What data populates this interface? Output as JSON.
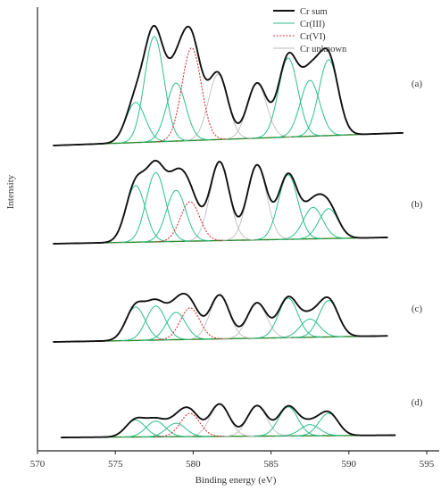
{
  "chart_data": {
    "type": "line",
    "title": "",
    "xlabel": "Binding energy (eV)",
    "ylabel": "Intensity",
    "xlim": [
      570,
      595
    ],
    "x_ticks": [
      "570",
      "575",
      "580",
      "585",
      "590",
      "595"
    ],
    "grid": false,
    "legend_position": "top-right",
    "legend": [
      {
        "name": "Cr sum",
        "color": "#111111",
        "style": "solid"
      },
      {
        "name": "Cr(III)",
        "color": "#2dbf8a",
        "style": "solid"
      },
      {
        "name": "Cr(VI)",
        "color": "#d6333a",
        "style": "dotted"
      },
      {
        "name": "Cr unknown",
        "color": "#bbbbbb",
        "style": "solid"
      }
    ],
    "colors": {
      "sum": "#111111",
      "cr3": "#2dbf8a",
      "cr6": "#d6333a",
      "unknown": "#bdbdbd",
      "background": "#2e8b2e"
    },
    "panels": [
      {
        "label": "(a)",
        "x_range": [
          571.0,
          593.5
        ],
        "baseline": [
          0.0,
          0.12
        ],
        "cr3_peaks": [
          [
            576.3,
            0.38
          ],
          [
            577.5,
            1.0
          ],
          [
            578.9,
            0.55
          ],
          [
            586.1,
            0.75
          ],
          [
            587.5,
            0.53
          ],
          [
            588.7,
            0.72
          ]
        ],
        "cr6_peaks": [
          [
            579.9,
            0.88
          ]
        ],
        "unknown_peaks": [
          [
            581.6,
            0.62
          ],
          [
            584.1,
            0.52
          ]
        ]
      },
      {
        "label": "(b)",
        "x_range": [
          571.0,
          592.5
        ],
        "baseline": [
          0.0,
          0.08
        ],
        "cr3_peaks": [
          [
            576.3,
            0.72
          ],
          [
            577.6,
            0.88
          ],
          [
            578.9,
            0.65
          ],
          [
            586.1,
            0.82
          ],
          [
            587.7,
            0.4
          ],
          [
            588.7,
            0.38
          ]
        ],
        "cr6_peaks": [
          [
            579.8,
            0.5
          ]
        ],
        "unknown_peaks": [
          [
            581.7,
            1.0
          ],
          [
            584.1,
            0.95
          ]
        ]
      },
      {
        "label": "(c)",
        "x_range": [
          571.0,
          592.5
        ],
        "baseline": [
          0.0,
          0.1
        ],
        "cr3_peaks": [
          [
            576.3,
            0.55
          ],
          [
            577.6,
            0.56
          ],
          [
            578.9,
            0.45
          ],
          [
            586.1,
            0.65
          ],
          [
            587.5,
            0.3
          ],
          [
            588.7,
            0.6
          ]
        ],
        "cr6_peaks": [
          [
            579.8,
            0.52
          ]
        ],
        "unknown_peaks": [
          [
            581.7,
            0.72
          ],
          [
            584.1,
            0.58
          ]
        ]
      },
      {
        "label": "(d)",
        "x_range": [
          571.5,
          593.0
        ],
        "baseline": [
          0.0,
          0.05
        ],
        "cr3_peaks": [
          [
            576.3,
            0.38
          ],
          [
            577.6,
            0.35
          ],
          [
            578.9,
            0.3
          ],
          [
            586.1,
            0.65
          ],
          [
            587.5,
            0.25
          ],
          [
            588.7,
            0.5
          ]
        ],
        "cr6_peaks": [
          [
            579.8,
            0.52
          ]
        ],
        "unknown_peaks": [
          [
            581.7,
            0.72
          ],
          [
            584.1,
            0.68
          ]
        ]
      }
    ]
  }
}
